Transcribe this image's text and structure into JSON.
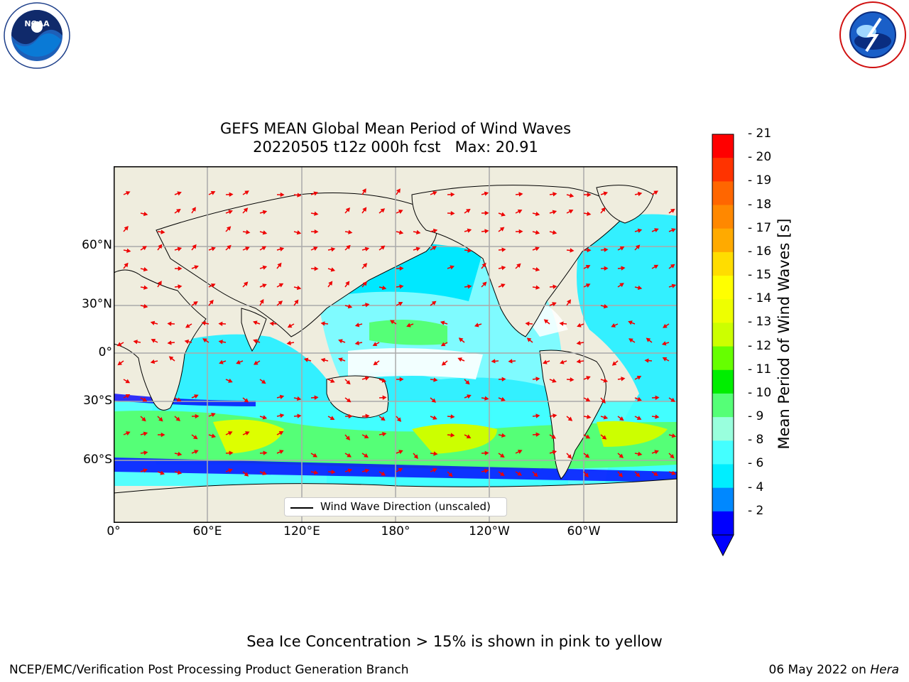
{
  "title": {
    "line1": "GEFS MEAN Global Mean Period of Wind Waves",
    "line2": "20220505 t12z 000h fcst   Max: 20.91"
  },
  "logos": {
    "left": {
      "icon": "noaa-logo",
      "text": "NOAA",
      "ring_text": "NATIONAL OCEANIC AND ATMOSPHERIC ADMINISTRATION · U.S. DEPARTMENT OF COMMERCE"
    },
    "right": {
      "icon": "nws-logo",
      "ring_text": "NATIONAL WEATHER SERVICE"
    }
  },
  "map": {
    "projection": "equirectangular, 0° centered at left edge",
    "lon_ticks": [
      "0°",
      "60°E",
      "120°E",
      "180°",
      "120°W",
      "60°W"
    ],
    "lat_ticks": [
      "60°N",
      "30°N",
      "0°",
      "30°S",
      "60°S"
    ],
    "land_color": "#efedde",
    "grid": true,
    "legend": {
      "label": "Wind Wave Direction (unscaled)",
      "placement": "lower-center"
    }
  },
  "colorbar": {
    "label": "Mean Period of Wind Waves [s]",
    "ticks": [
      "21",
      "20",
      "19",
      "18",
      "17",
      "16",
      "15",
      "14",
      "13",
      "12",
      "11",
      "10",
      "9",
      "8",
      "6",
      "4",
      "2"
    ],
    "colors": [
      "#ff0000",
      "#ff3300",
      "#ff6600",
      "#ff8800",
      "#ffaa00",
      "#ffdd00",
      "#ffff00",
      "#eeff00",
      "#ccff00",
      "#66ff00",
      "#00ee00",
      "#55ff77",
      "#99ffdd",
      "#44ffff",
      "#00eeff",
      "#0088ff",
      "#0000ff"
    ],
    "extend": "min"
  },
  "ice_note": "Sea Ice Concentration > 15% is shown in pink to yellow",
  "footer": {
    "left": "NCEP/EMC/Verification Post Processing Product Generation Branch",
    "date": "06 May 2022 on ",
    "machine": "Hera"
  }
}
